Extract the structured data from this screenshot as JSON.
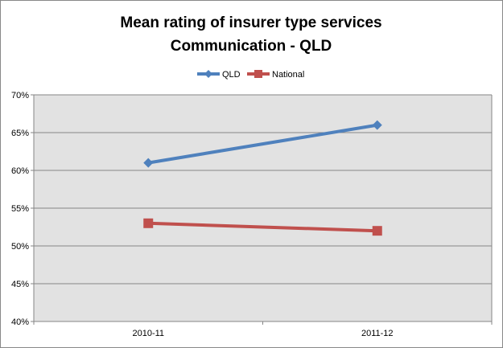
{
  "chart_data": {
    "type": "line",
    "title": "Mean rating of insurer type services",
    "subtitle": "Communication - QLD",
    "categories": [
      "2010-11",
      "2011-12"
    ],
    "series": [
      {
        "name": "QLD",
        "values": [
          61,
          66
        ],
        "color": "#4f81bd",
        "marker": "diamond"
      },
      {
        "name": "National",
        "values": [
          53,
          52
        ],
        "color": "#c0504d",
        "marker": "square"
      }
    ],
    "ylim": [
      40,
      70
    ],
    "yticks": [
      40,
      45,
      50,
      55,
      60,
      65,
      70
    ],
    "yticks_labels": [
      "40%",
      "45%",
      "50%",
      "55%",
      "60%",
      "65%",
      "70%"
    ],
    "grid": true,
    "legend": "top",
    "plot_background": "#e2e2e2"
  }
}
